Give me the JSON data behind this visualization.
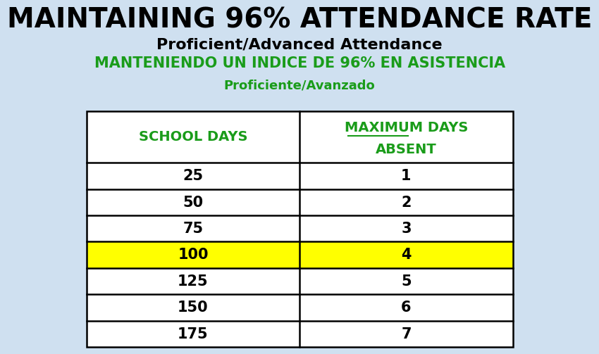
{
  "title_line1": "MAINTAINING 96% ATTENDANCE RATE",
  "title_line2": "Proficient/Advanced Attendance",
  "title_line3": "MANTENIENDO UN INDICE DE 96% EN ASISTENCIA",
  "title_line4": "Proficiente/Avanzado",
  "bg_color": "#cfe0f0",
  "title1_color": "#000000",
  "title2_color": "#000000",
  "title3_color": "#1a9c1a",
  "title4_color": "#1a9c1a",
  "table_header_left": "SCHOOL DAYS",
  "table_header_right_line1": "MAXIMUM DAYS",
  "table_header_right_line2": "ABSENT",
  "header_color": "#1a9c1a",
  "school_days": [
    25,
    50,
    75,
    100,
    125,
    150,
    175
  ],
  "max_absent": [
    1,
    2,
    3,
    4,
    5,
    6,
    7
  ],
  "highlight_row": 3,
  "highlight_color": "#ffff00",
  "table_text_color": "#000000",
  "table_bg_color": "#ffffff",
  "table_border_color": "#000000",
  "title1_fontsize": 28,
  "title2_fontsize": 16,
  "title3_fontsize": 15,
  "title4_fontsize": 13,
  "header_fontsize": 14,
  "data_fontsize": 15
}
